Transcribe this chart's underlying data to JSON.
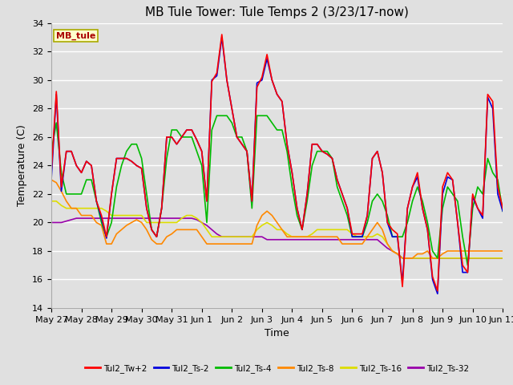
{
  "title": "MB Tule Tower: Tule Temps 2 (3/23/17-now)",
  "xlabel": "Time",
  "ylabel": "Temperature (C)",
  "ylim": [
    14,
    34
  ],
  "yticks": [
    14,
    16,
    18,
    20,
    22,
    24,
    26,
    28,
    30,
    32,
    34
  ],
  "background_color": "#e0e0e0",
  "plot_bg_color": "#e0e0e0",
  "grid_color": "#ffffff",
  "title_fontsize": 11,
  "label_fontsize": 9,
  "tick_fontsize": 8,
  "legend_label": "MB_tule",
  "series_colors": {
    "Tul2_Tw+2": "#ff0000",
    "Tul2_Ts-2": "#0000dd",
    "Tul2_Ts-4": "#00bb00",
    "Tul2_Ts-8": "#ff8800",
    "Tul2_Ts-16": "#dddd00",
    "Tul2_Ts-32": "#9900aa"
  },
  "x_tick_labels": [
    "May 27",
    "May 28",
    "May 29",
    "May 30",
    "May 31",
    "Jun 1",
    "Jun 2",
    "Jun 3",
    "Jun 4",
    "Jun 5",
    "Jun 6",
    "Jun 7",
    "Jun 8",
    "Jun 9",
    "Jun 10",
    "Jun 11"
  ],
  "Tul2_Tw+2": [
    23.5,
    29.2,
    22.5,
    25.0,
    25.0,
    24.0,
    23.5,
    24.3,
    24.0,
    21.5,
    20.5,
    19.0,
    22.0,
    24.5,
    24.5,
    24.5,
    24.3,
    24.0,
    23.8,
    21.0,
    19.5,
    19.0,
    21.0,
    26.0,
    26.0,
    25.5,
    26.0,
    26.5,
    26.5,
    25.8,
    25.0,
    21.5,
    29.9,
    30.5,
    33.2,
    30.0,
    28.0,
    26.0,
    25.5,
    25.0,
    21.5,
    29.5,
    30.2,
    31.8,
    30.0,
    29.0,
    28.5,
    25.5,
    23.5,
    21.0,
    19.5,
    22.0,
    25.5,
    25.5,
    25.0,
    24.8,
    24.5,
    23.0,
    22.0,
    21.0,
    19.2,
    19.2,
    19.2,
    20.5,
    24.5,
    25.0,
    23.5,
    20.0,
    19.5,
    19.2,
    15.5,
    21.0,
    22.5,
    23.5,
    21.0,
    19.5,
    16.2,
    15.2,
    22.5,
    23.5,
    23.0,
    20.0,
    17.0,
    16.5,
    22.0,
    21.0,
    20.5,
    29.0,
    28.5,
    22.5,
    21.0
  ],
  "Tul2_Ts-2": [
    23.0,
    29.0,
    22.2,
    25.0,
    25.0,
    24.0,
    23.5,
    24.3,
    24.0,
    21.5,
    20.3,
    18.9,
    22.0,
    24.5,
    24.5,
    24.5,
    24.3,
    24.0,
    23.8,
    21.0,
    19.5,
    19.0,
    21.0,
    26.0,
    26.0,
    25.5,
    26.0,
    26.5,
    26.5,
    25.8,
    25.0,
    21.5,
    30.0,
    30.3,
    33.0,
    30.0,
    28.0,
    26.0,
    25.5,
    25.0,
    21.5,
    29.8,
    30.0,
    31.5,
    30.0,
    29.0,
    28.5,
    25.5,
    23.5,
    21.0,
    19.5,
    22.0,
    25.5,
    25.5,
    25.0,
    24.8,
    24.5,
    23.0,
    22.0,
    21.0,
    19.0,
    19.0,
    19.0,
    20.5,
    24.5,
    25.0,
    23.5,
    20.0,
    19.0,
    19.0,
    15.8,
    21.0,
    22.5,
    23.2,
    21.0,
    19.5,
    16.0,
    15.0,
    22.0,
    23.2,
    23.0,
    20.0,
    16.5,
    16.5,
    21.8,
    21.0,
    20.3,
    28.8,
    28.0,
    22.0,
    20.8
  ],
  "Tul2_Ts-4": [
    25.0,
    27.0,
    23.5,
    22.0,
    22.0,
    22.0,
    22.0,
    23.0,
    23.0,
    21.5,
    20.0,
    19.0,
    20.0,
    22.5,
    24.0,
    25.0,
    25.5,
    25.5,
    24.5,
    22.0,
    19.5,
    19.0,
    21.0,
    24.5,
    26.5,
    26.5,
    26.0,
    26.0,
    26.0,
    25.0,
    24.0,
    20.0,
    26.5,
    27.5,
    27.5,
    27.5,
    27.0,
    26.0,
    26.0,
    25.0,
    21.0,
    27.5,
    27.5,
    27.5,
    27.0,
    26.5,
    26.5,
    25.0,
    22.5,
    20.5,
    19.5,
    21.5,
    24.0,
    25.0,
    25.0,
    25.0,
    24.5,
    22.5,
    21.5,
    20.5,
    19.0,
    19.0,
    19.0,
    20.0,
    21.5,
    22.0,
    21.5,
    20.5,
    19.0,
    19.0,
    19.0,
    20.0,
    21.5,
    22.5,
    21.5,
    20.0,
    18.0,
    17.5,
    21.0,
    22.5,
    22.0,
    21.5,
    19.0,
    17.0,
    21.0,
    22.5,
    22.0,
    24.5,
    23.5,
    23.0,
    20.8
  ],
  "Tul2_Ts-8": [
    23.0,
    22.8,
    22.2,
    21.5,
    21.0,
    21.0,
    20.5,
    20.5,
    20.5,
    20.0,
    19.8,
    18.5,
    18.5,
    19.2,
    19.5,
    19.8,
    20.0,
    20.2,
    20.0,
    19.5,
    18.8,
    18.5,
    18.5,
    19.0,
    19.2,
    19.5,
    19.5,
    19.5,
    19.5,
    19.5,
    19.0,
    18.5,
    18.5,
    18.5,
    18.5,
    18.5,
    18.5,
    18.5,
    18.5,
    18.5,
    18.5,
    19.8,
    20.5,
    20.8,
    20.5,
    20.0,
    19.5,
    19.0,
    19.0,
    19.0,
    19.0,
    19.0,
    19.0,
    19.0,
    19.0,
    19.0,
    19.0,
    19.0,
    18.5,
    18.5,
    18.5,
    18.5,
    18.5,
    19.0,
    19.5,
    20.0,
    19.5,
    18.5,
    18.0,
    17.8,
    17.5,
    17.5,
    17.5,
    17.8,
    17.8,
    18.0,
    17.5,
    17.5,
    17.8,
    18.0,
    18.0,
    18.0,
    18.0,
    18.0,
    18.0,
    18.0,
    18.0,
    18.0,
    18.0,
    18.0,
    18.0
  ],
  "Tul2_Ts-16": [
    21.5,
    21.5,
    21.2,
    21.0,
    21.0,
    21.0,
    21.0,
    21.0,
    21.0,
    21.0,
    21.0,
    20.8,
    20.5,
    20.5,
    20.5,
    20.5,
    20.5,
    20.5,
    20.5,
    20.0,
    20.0,
    20.0,
    20.0,
    20.0,
    20.0,
    20.0,
    20.3,
    20.5,
    20.5,
    20.3,
    20.0,
    19.5,
    19.0,
    19.0,
    19.0,
    19.0,
    19.0,
    19.0,
    19.0,
    19.0,
    19.0,
    19.5,
    19.8,
    20.0,
    19.8,
    19.5,
    19.5,
    19.2,
    19.0,
    19.0,
    19.0,
    19.0,
    19.2,
    19.5,
    19.5,
    19.5,
    19.5,
    19.5,
    19.5,
    19.5,
    19.2,
    19.0,
    19.0,
    19.0,
    19.0,
    19.2,
    19.0,
    18.5,
    18.0,
    17.8,
    17.5,
    17.5,
    17.5,
    17.5,
    17.5,
    17.5,
    17.5,
    17.5,
    17.5,
    17.5,
    17.5,
    17.5,
    17.5,
    17.5,
    17.5,
    17.5,
    17.5,
    17.5,
    17.5,
    17.5,
    17.5
  ],
  "Tul2_Ts-32": [
    20.0,
    20.0,
    20.0,
    20.1,
    20.2,
    20.3,
    20.3,
    20.3,
    20.3,
    20.3,
    20.3,
    20.3,
    20.3,
    20.3,
    20.3,
    20.3,
    20.3,
    20.3,
    20.3,
    20.3,
    20.3,
    20.3,
    20.3,
    20.3,
    20.3,
    20.3,
    20.3,
    20.3,
    20.3,
    20.2,
    20.0,
    19.8,
    19.5,
    19.2,
    19.0,
    19.0,
    19.0,
    19.0,
    19.0,
    19.0,
    19.0,
    19.0,
    19.0,
    18.8,
    18.8,
    18.8,
    18.8,
    18.8,
    18.8,
    18.8,
    18.8,
    18.8,
    18.8,
    18.8,
    18.8,
    18.8,
    18.8,
    18.8,
    18.8,
    18.8,
    18.8,
    18.8,
    18.8,
    18.8,
    18.8,
    18.8,
    18.5,
    18.2,
    18.0,
    17.8,
    17.5,
    17.5,
    17.5,
    17.5,
    17.5,
    17.5,
    17.5,
    17.5,
    17.5,
    17.5,
    17.5,
    17.5,
    17.5,
    17.5,
    17.5,
    17.5,
    17.5,
    17.5,
    17.5,
    17.5,
    17.5
  ]
}
